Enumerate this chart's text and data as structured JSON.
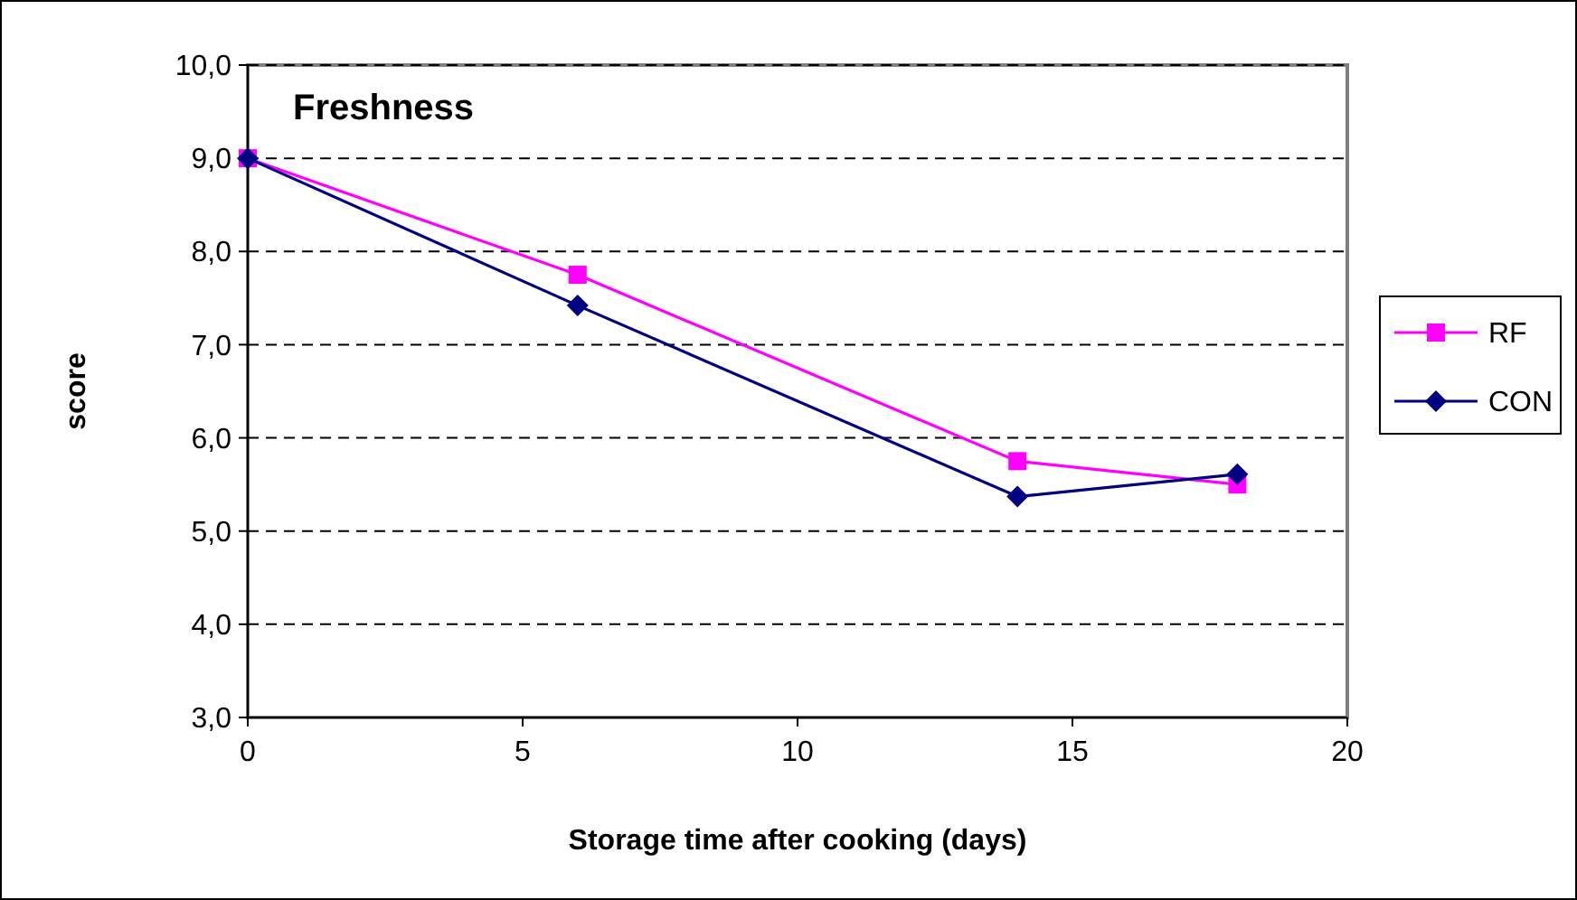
{
  "chart_data": {
    "type": "line",
    "title": "Freshness",
    "xlabel": "Storage time after cooking (days)",
    "ylabel": "score",
    "x": [
      0,
      6,
      14,
      18
    ],
    "series": [
      {
        "name": "RF",
        "color": "#ff00ff",
        "marker": "square",
        "values": [
          9.0,
          7.75,
          5.75,
          5.5
        ]
      },
      {
        "name": "CON",
        "color": "#000080",
        "marker": "diamond",
        "values": [
          9.0,
          7.42,
          5.37,
          5.61
        ]
      }
    ],
    "xlim": [
      0,
      20
    ],
    "xticks": [
      0,
      5,
      10,
      15,
      20
    ],
    "ylim": [
      3,
      10
    ],
    "yticks": [
      {
        "value": 3,
        "label": "3,0"
      },
      {
        "value": 4,
        "label": "4,0"
      },
      {
        "value": 5,
        "label": "5,0"
      },
      {
        "value": 6,
        "label": "6,0"
      },
      {
        "value": 7,
        "label": "7,0"
      },
      {
        "value": 8,
        "label": "8,0"
      },
      {
        "value": 9,
        "label": "9,0"
      },
      {
        "value": 10,
        "label": "10,0"
      }
    ],
    "grid": "y",
    "legend": "right",
    "line_style": "solid"
  }
}
